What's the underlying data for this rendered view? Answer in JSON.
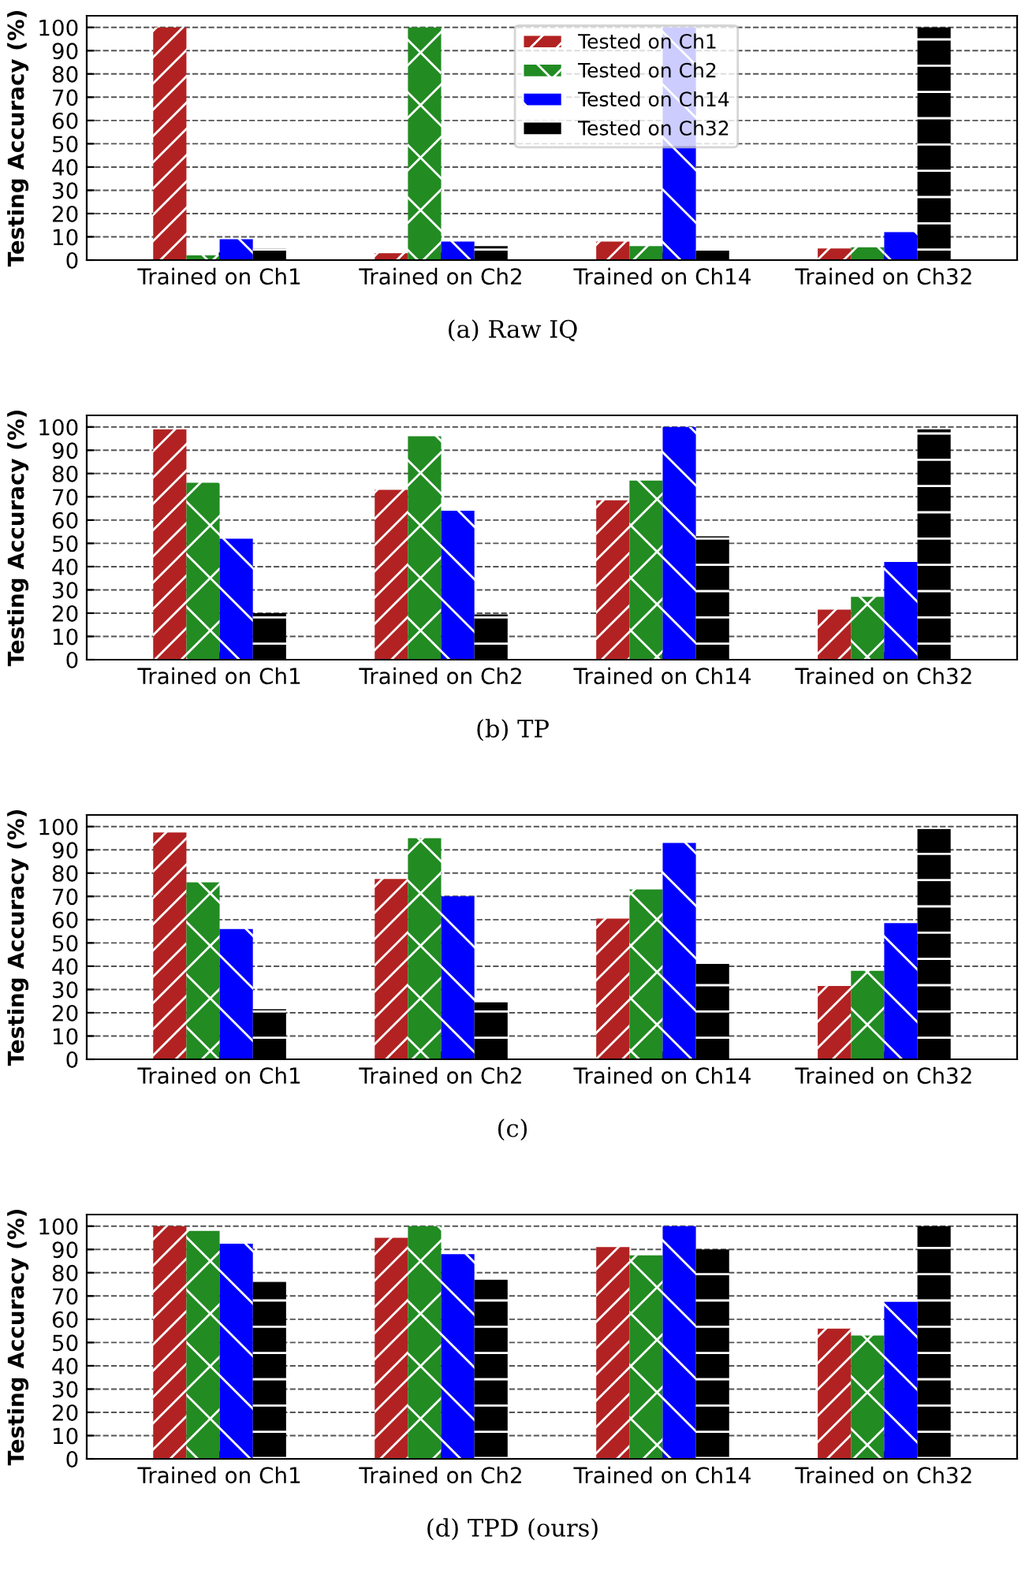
{
  "chart_data": [
    {
      "type": "bar",
      "title": "(a) Raw IQ",
      "ylabel": "Testing Accuracy (%)",
      "categories": [
        "Trained on Ch1",
        "Trained on Ch2",
        "Trained on Ch14",
        "Trained on Ch32"
      ],
      "series": [
        {
          "name": "Tested on Ch1",
          "color": "#b22222",
          "values": [
            100,
            3,
            8,
            5
          ]
        },
        {
          "name": "Tested on Ch2",
          "color": "#228b22",
          "values": [
            2,
            100,
            6,
            5.5
          ]
        },
        {
          "name": "Tested on Ch14",
          "color": "#0000ff",
          "values": [
            9,
            8,
            100,
            12
          ]
        },
        {
          "name": "Tested on Ch32",
          "color": "#000000",
          "values": [
            5,
            6,
            4.5,
            100
          ]
        }
      ],
      "ylim": [
        0,
        105
      ],
      "yticks": [
        0,
        10,
        20,
        30,
        40,
        50,
        60,
        70,
        80,
        90,
        100
      ],
      "grid": "y",
      "legend": "top"
    },
    {
      "type": "bar",
      "title": "(b) TP",
      "ylabel": "Testing Accuracy (%)",
      "categories": [
        "Trained on Ch1",
        "Trained on Ch2",
        "Trained on Ch14",
        "Trained on Ch32"
      ],
      "series": [
        {
          "color": "#b22222",
          "values": [
            99,
            73,
            68.5,
            21.5
          ]
        },
        {
          "color": "#228b22",
          "values": [
            76,
            96,
            77,
            27
          ]
        },
        {
          "color": "#0000ff",
          "values": [
            52,
            64,
            100,
            42
          ]
        },
        {
          "color": "#000000",
          "values": [
            20,
            19.5,
            53,
            99
          ]
        }
      ],
      "ylim": [
        0,
        105
      ],
      "yticks": [
        0,
        10,
        20,
        30,
        40,
        50,
        60,
        70,
        80,
        90,
        100
      ],
      "grid": "y"
    },
    {
      "type": "bar",
      "title": "(c)",
      "ylabel": "Testing Accuracy (%)",
      "categories": [
        "Trained on Ch1",
        "Trained on Ch2",
        "Trained on Ch14",
        "Trained on Ch32"
      ],
      "series": [
        {
          "color": "#b22222",
          "values": [
            97.5,
            77.5,
            60.5,
            31.5
          ]
        },
        {
          "color": "#228b22",
          "values": [
            76,
            95,
            73,
            38
          ]
        },
        {
          "color": "#0000ff",
          "values": [
            56,
            70,
            93,
            58.5
          ]
        },
        {
          "color": "#000000",
          "values": [
            21.5,
            24.5,
            41,
            99
          ]
        }
      ],
      "ylim": [
        0,
        105
      ],
      "yticks": [
        0,
        10,
        20,
        30,
        40,
        50,
        60,
        70,
        80,
        90,
        100
      ],
      "grid": "y"
    },
    {
      "type": "bar",
      "title": "(d) TPD (ours)",
      "ylabel": "Testing Accuracy (%)",
      "categories": [
        "Trained on Ch1",
        "Trained on Ch2",
        "Trained on Ch14",
        "Trained on Ch32"
      ],
      "series": [
        {
          "color": "#b22222",
          "values": [
            100,
            95,
            91,
            56
          ]
        },
        {
          "color": "#228b22",
          "values": [
            98,
            100,
            87.5,
            53
          ]
        },
        {
          "color": "#0000ff",
          "values": [
            92.5,
            88,
            100,
            67.5
          ]
        },
        {
          "color": "#000000",
          "values": [
            76,
            77,
            90,
            100
          ]
        }
      ],
      "ylim": [
        0,
        105
      ],
      "yticks": [
        0,
        10,
        20,
        30,
        40,
        50,
        60,
        70,
        80,
        90,
        100
      ],
      "grid": "y"
    }
  ]
}
